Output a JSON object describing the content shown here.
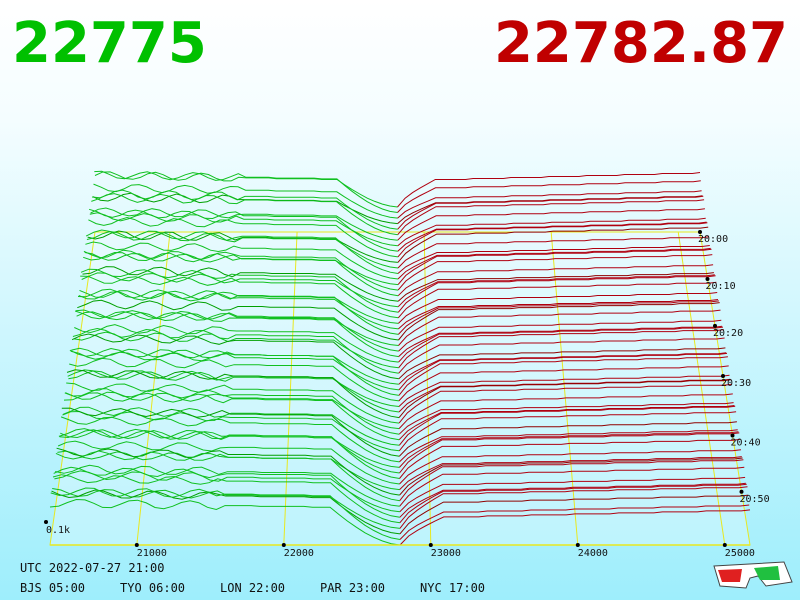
{
  "header": {
    "bid": "22775",
    "ask": "22782.87"
  },
  "price_axis": {
    "ticks": [
      "21000",
      "22000",
      "23000",
      "24000",
      "25000"
    ]
  },
  "time_axis": {
    "ticks": [
      "20:00",
      "20:10",
      "20:20",
      "20:30",
      "20:40",
      "20:50"
    ]
  },
  "depth_label": "0.1k",
  "footer": {
    "utc": "UTC 2022-07-27 21:00",
    "cities": [
      "BJS 05:00",
      "TYO 06:00",
      "LON 22:00",
      "PAR 23:00",
      "NYC 17:00"
    ]
  }
}
